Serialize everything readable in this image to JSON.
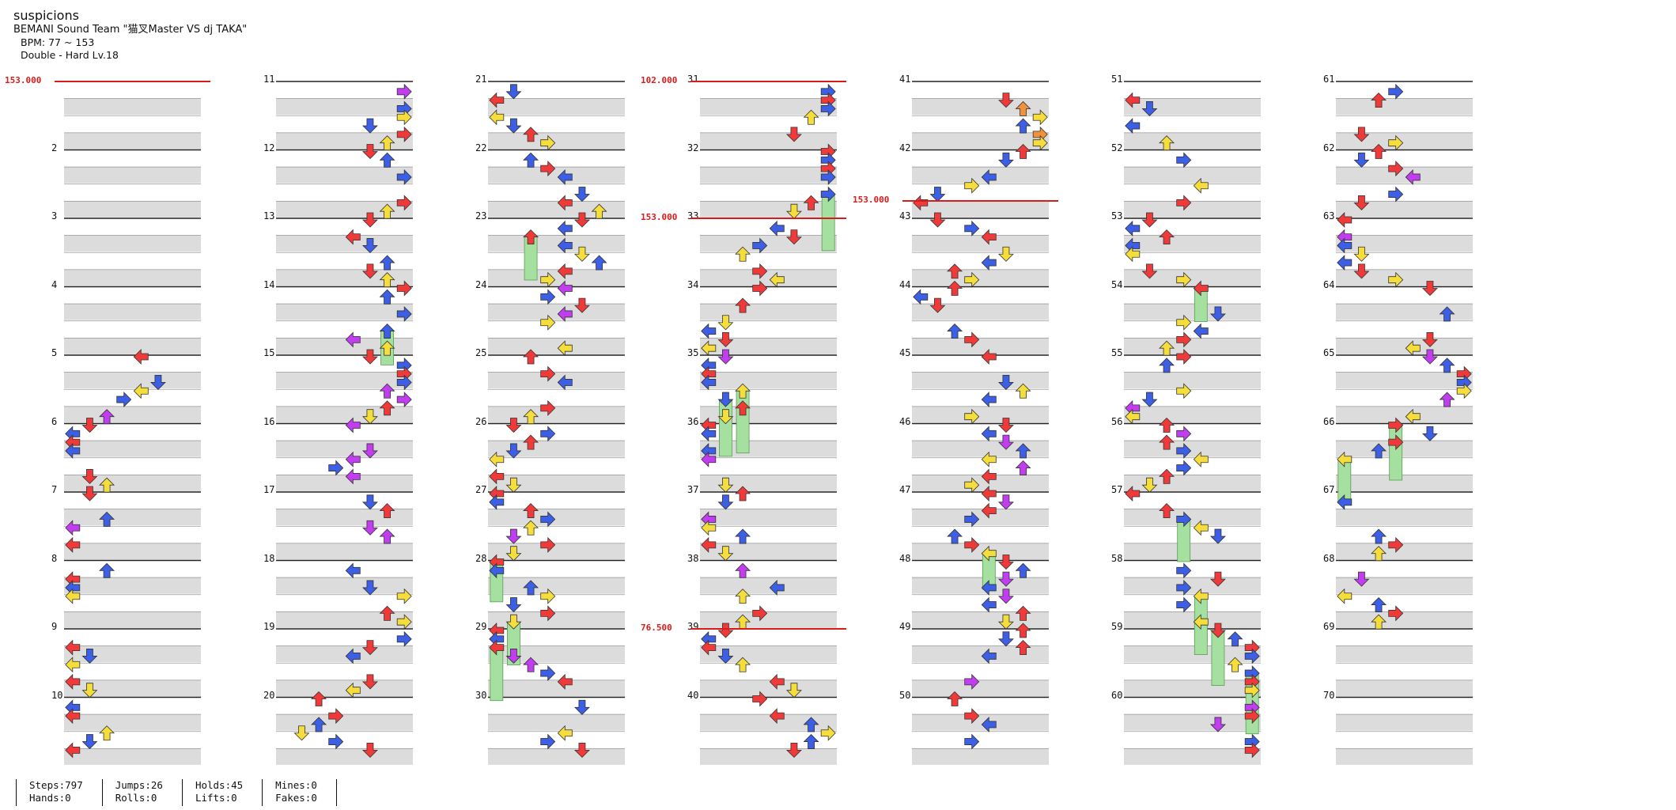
{
  "song": {
    "title": "suspicions",
    "artist": "BEMANI Sound Team \"猫叉Master VS dj TAKA\"",
    "bpm_line": "BPM: 77 ~ 153",
    "difficulty_line": "Double - Hard  Lv.18"
  },
  "colors": {
    "red": "#f03a3a",
    "blue": "#3c5fe6",
    "yellow": "#f5dd3c",
    "purple": "#c23cf0",
    "orange": "#f0923c",
    "hold": "#a6e0a0",
    "bpm_line": "#d81b1b",
    "stripe": "#dcdcdc"
  },
  "columns": [
    {
      "measures": [
        "",
        "2",
        "3",
        "4",
        "5",
        "6",
        "7",
        "8",
        "9",
        "10"
      ]
    },
    {
      "measures": [
        "11",
        "12",
        "13",
        "14",
        "15",
        "16",
        "17",
        "18",
        "19",
        "20"
      ]
    },
    {
      "measures": [
        "21",
        "22",
        "23",
        "24",
        "25",
        "26",
        "27",
        "28",
        "29",
        "30"
      ]
    },
    {
      "measures": [
        "31",
        "32",
        "33",
        "34",
        "35",
        "36",
        "37",
        "38",
        "39",
        "40"
      ]
    },
    {
      "measures": [
        "41",
        "42",
        "43",
        "44",
        "45",
        "46",
        "47",
        "48",
        "49",
        "50"
      ]
    },
    {
      "measures": [
        "51",
        "52",
        "53",
        "54",
        "55",
        "56",
        "57",
        "58",
        "59",
        "60"
      ]
    },
    {
      "measures": [
        "61",
        "62",
        "63",
        "64",
        "65",
        "66",
        "67",
        "68",
        "69",
        "70"
      ]
    }
  ],
  "bpm_changes": [
    {
      "column": 0,
      "measure_index": 0,
      "beat": 0,
      "label": "153.000"
    },
    {
      "column": 3,
      "measure_index": 0,
      "beat": 0,
      "label": "102.000"
    },
    {
      "column": 3,
      "measure_index": 2,
      "beat": 0,
      "label": "153.000"
    },
    {
      "column": 4,
      "measure_index": 1,
      "beat": 3,
      "label": "153.000"
    },
    {
      "column": 3,
      "measure_index": 8,
      "beat": 0,
      "label": "76.500"
    }
  ],
  "stats": {
    "steps": "Steps:797",
    "hands": "Hands:0",
    "jumps": "Jumps:26",
    "rolls": "Rolls:0",
    "holds": "Holds:45",
    "lifts": "Lifts:0",
    "mines": "Mines:0",
    "fakes": "Fakes:0"
  }
}
